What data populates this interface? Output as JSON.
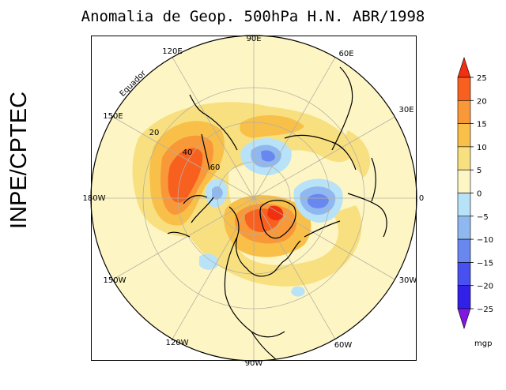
{
  "title": "Anomalia de Geop. 500hPa H.N. ABR/1998",
  "side_label": "INPE/CPTEC",
  "map": {
    "projection": "north-polar-stereographic",
    "longitude_labels": [
      "90E",
      "60E",
      "30E",
      "0",
      "30W",
      "60W",
      "90W",
      "120W",
      "150W",
      "180W",
      "150E",
      "120E"
    ],
    "latitude_labels": [
      "Equador",
      "20",
      "40",
      "60"
    ]
  },
  "colorbar": {
    "units": "mgp",
    "tick_labels": [
      "25",
      "20",
      "15",
      "10",
      "5",
      "0",
      "−5",
      "−10",
      "−15",
      "−20",
      "−25"
    ],
    "bins": [
      {
        "range": "> 25",
        "color": "#f03010"
      },
      {
        "range": "20 to 25",
        "color": "#f86020"
      },
      {
        "range": "15 to 20",
        "color": "#f89838"
      },
      {
        "range": "10 to 15",
        "color": "#f8c048"
      },
      {
        "range": "5 to 10",
        "color": "#f8e080"
      },
      {
        "range": "0 to 5",
        "color": "#fdf6c4"
      },
      {
        "range": "-5 to 0",
        "color": "#b8e2f8"
      },
      {
        "range": "-10 to -5",
        "color": "#90b8f0"
      },
      {
        "range": "-15 to -10",
        "color": "#6888f0"
      },
      {
        "range": "-20 to -15",
        "color": "#4850f0"
      },
      {
        "range": "-25 to -20",
        "color": "#3020e8"
      },
      {
        "range": "< -25",
        "color": "#8018e0"
      }
    ]
  }
}
